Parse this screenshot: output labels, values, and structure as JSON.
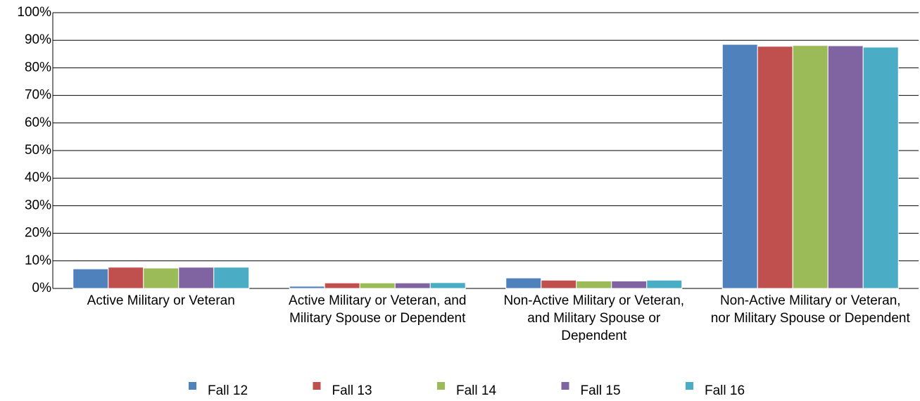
{
  "chart_data": {
    "type": "bar",
    "categories": [
      "Active Military or Veteran",
      "Active Military or Veteran, and Military Spouse or Dependent",
      "Non-Active Military or Veteran, and Military Spouse or Dependent",
      "Non-Active Military or Veteran, nor Military Spouse or Dependent"
    ],
    "series": [
      {
        "name": "Fall 12",
        "color": "#4f81bd",
        "values": [
          7.1,
          0.8,
          3.8,
          88.5
        ]
      },
      {
        "name": "Fall 13",
        "color": "#c0504d",
        "values": [
          7.7,
          2.0,
          3.0,
          87.8
        ]
      },
      {
        "name": "Fall 14",
        "color": "#9bbb59",
        "values": [
          7.4,
          2.0,
          2.7,
          88.1
        ]
      },
      {
        "name": "Fall 15",
        "color": "#8064a2",
        "values": [
          7.7,
          2.0,
          2.7,
          88.0
        ]
      },
      {
        "name": "Fall 16",
        "color": "#4bacc6",
        "values": [
          7.7,
          2.1,
          3.0,
          87.5
        ]
      }
    ],
    "ylim": [
      0,
      100
    ],
    "yticks": [
      {
        "value": 0,
        "label": "0%"
      },
      {
        "value": 10,
        "label": "10%"
      },
      {
        "value": 20,
        "label": "20%"
      },
      {
        "value": 30,
        "label": "30%"
      },
      {
        "value": 40,
        "label": "40%"
      },
      {
        "value": 50,
        "label": "50%"
      },
      {
        "value": 60,
        "label": "60%"
      },
      {
        "value": 70,
        "label": "70%"
      },
      {
        "value": 80,
        "label": "80%"
      },
      {
        "value": 90,
        "label": "90%"
      },
      {
        "value": 100,
        "label": "100%"
      }
    ],
    "grid": true,
    "legend": "bottom"
  }
}
